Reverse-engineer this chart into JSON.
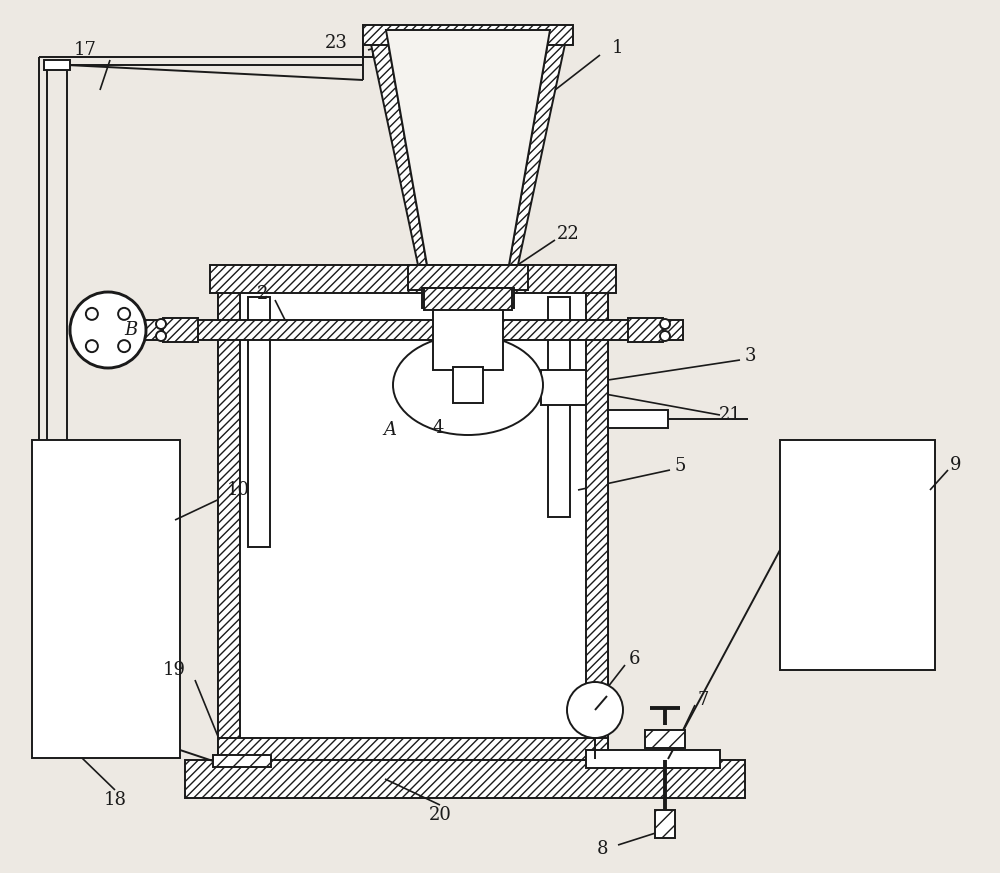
{
  "bg_color": "#ede9e3",
  "line_color": "#1a1a1a",
  "lw": 1.4,
  "font_size": 13,
  "fig_w": 10.0,
  "fig_h": 8.73
}
